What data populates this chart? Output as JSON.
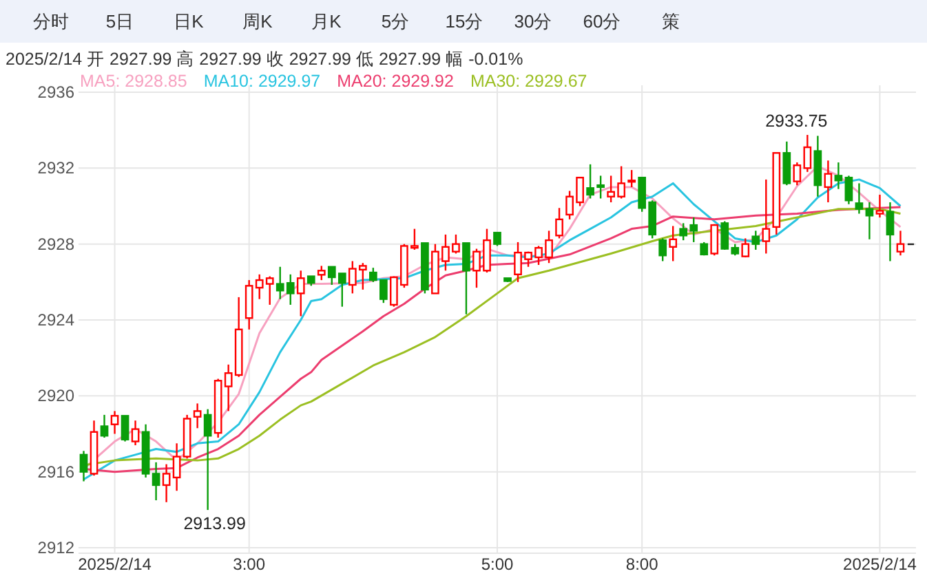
{
  "chart_data": {
    "type": "candlestick",
    "subtitle": "2025/2/14 开 2927.99 高 2927.99 收 2927.99 低 2927.99 幅 -0.01%",
    "categories": [
      null,
      null,
      null,
      "2025/2/14",
      null,
      null,
      null,
      null,
      null,
      null,
      null,
      null,
      null,
      null,
      null,
      null,
      "3:00",
      null,
      null,
      null,
      null,
      null,
      null,
      null,
      null,
      null,
      null,
      null,
      null,
      null,
      null,
      null,
      null,
      null,
      null,
      null,
      null,
      null,
      null,
      null,
      "5:00",
      null,
      null,
      null,
      null,
      null,
      null,
      null,
      null,
      null,
      null,
      null,
      null,
      null,
      "8:00",
      null,
      null,
      null,
      null,
      null,
      null,
      null,
      null,
      null,
      null,
      null,
      null,
      null,
      null,
      null,
      null,
      null,
      null,
      null,
      null,
      null,
      null,
      "2025/2/14",
      null,
      null,
      null
    ],
    "ohlc": [
      [
        2916.9,
        2917.1,
        2915.5,
        2916.0
      ],
      [
        2915.9,
        2918.7,
        2915.8,
        2918.1
      ],
      [
        2918.4,
        2919.0,
        2917.8,
        2917.9
      ],
      [
        2918.5,
        2919.2,
        2918.0,
        2918.95
      ],
      [
        2918.95,
        2918.95,
        2917.6,
        2917.7
      ],
      [
        2917.6,
        2918.7,
        2917.4,
        2918.25
      ],
      [
        2918.1,
        2918.5,
        2915.7,
        2915.9
      ],
      [
        2915.9,
        2916.5,
        2914.5,
        2915.3
      ],
      [
        2915.3,
        2916.4,
        2914.4,
        2915.9
      ],
      [
        2915.7,
        2917.5,
        2915.0,
        2916.8
      ],
      [
        2916.8,
        2919.0,
        2916.7,
        2918.8
      ],
      [
        2918.9,
        2919.6,
        2918.3,
        2919.2
      ],
      [
        2919.0,
        2919.3,
        2913.99,
        2917.9
      ],
      [
        2918.05,
        2920.9,
        2917.8,
        2920.8
      ],
      [
        2920.5,
        2921.65,
        2919.2,
        2921.2
      ],
      [
        2921.1,
        2925.2,
        2921.0,
        2923.5
      ],
      [
        2924.1,
        2926.1,
        2923.5,
        2925.8
      ],
      [
        2925.7,
        2926.4,
        2925.1,
        2926.1
      ],
      [
        2925.9,
        2926.3,
        2924.8,
        2926.2
      ],
      [
        2925.9,
        2926.8,
        2925.1,
        2925.55
      ],
      [
        2925.95,
        2926.4,
        2924.8,
        2925.4
      ],
      [
        2925.4,
        2926.6,
        2924.2,
        2926.2
      ],
      [
        2926.3,
        2926.3,
        2925.8,
        2925.95
      ],
      [
        2926.38,
        2926.85,
        2926.1,
        2926.6
      ],
      [
        2926.8,
        2926.8,
        2925.85,
        2926.25
      ],
      [
        2926.45,
        2926.45,
        2924.7,
        2925.95
      ],
      [
        2925.85,
        2927.1,
        2925.4,
        2926.7
      ],
      [
        2926.65,
        2927.0,
        2925.6,
        2926.85
      ],
      [
        2926.5,
        2926.75,
        2926.0,
        2926.1
      ],
      [
        2926.1,
        2926.1,
        2924.9,
        2925.1
      ],
      [
        2924.8,
        2926.3,
        2924.7,
        2926.25
      ],
      [
        2925.85,
        2928.0,
        2925.7,
        2927.9
      ],
      [
        2927.8,
        2928.8,
        2927.7,
        2927.9
      ],
      [
        2928.05,
        2928.05,
        2925.4,
        2925.6
      ],
      [
        2925.4,
        2928.0,
        2925.4,
        2927.6
      ],
      [
        2927.1,
        2928.5,
        2926.6,
        2927.85
      ],
      [
        2927.6,
        2928.5,
        2927.5,
        2928.0
      ],
      [
        2928.05,
        2928.05,
        2924.3,
        2926.6
      ],
      [
        2926.6,
        2927.75,
        2925.7,
        2927.6
      ],
      [
        2926.6,
        2928.8,
        2926.5,
        2928.2
      ],
      [
        2928.6,
        2928.6,
        2927.9,
        2928.0
      ],
      [
        2926.2,
        2926.2,
        2926.0,
        2926.05
      ],
      [
        2926.4,
        2928.1,
        2926.0,
        2927.55
      ],
      [
        2927.2,
        2927.6,
        2926.8,
        2927.55
      ],
      [
        2927.3,
        2927.9,
        2926.9,
        2927.8
      ],
      [
        2927.3,
        2928.7,
        2927.0,
        2928.2
      ],
      [
        2928.45,
        2929.9,
        2928.3,
        2929.3
      ],
      [
        2929.55,
        2930.8,
        2929.3,
        2930.5
      ],
      [
        2930.2,
        2931.5,
        2930.0,
        2931.5
      ],
      [
        2930.95,
        2932.2,
        2930.4,
        2930.6
      ],
      [
        2931.1,
        2931.6,
        2930.4,
        2931.0
      ],
      [
        2930.5,
        2931.6,
        2930.2,
        2930.75
      ],
      [
        2930.5,
        2932.1,
        2930.4,
        2931.2
      ],
      [
        2931.3,
        2931.9,
        2931.0,
        2931.35
      ],
      [
        2931.5,
        2931.5,
        2929.7,
        2929.9
      ],
      [
        2930.2,
        2930.3,
        2928.3,
        2928.5
      ],
      [
        2928.2,
        2928.3,
        2927.1,
        2927.4
      ],
      [
        2927.85,
        2928.95,
        2927.1,
        2928.25
      ],
      [
        2928.8,
        2929.1,
        2928.2,
        2928.45
      ],
      [
        2929.0,
        2929.4,
        2928.1,
        2928.7
      ],
      [
        2928.0,
        2928.1,
        2927.4,
        2927.45
      ],
      [
        2927.5,
        2929.05,
        2927.4,
        2929.0
      ],
      [
        2929.1,
        2929.2,
        2927.7,
        2927.75
      ],
      [
        2927.8,
        2928.0,
        2927.4,
        2927.5
      ],
      [
        2927.35,
        2928.3,
        2927.3,
        2928.0
      ],
      [
        2928.4,
        2928.7,
        2927.7,
        2928.0
      ],
      [
        2928.15,
        2931.4,
        2927.5,
        2928.8
      ],
      [
        2928.9,
        2932.8,
        2928.5,
        2932.8
      ],
      [
        2932.8,
        2933.4,
        2931.1,
        2931.2
      ],
      [
        2931.3,
        2932.3,
        2931.1,
        2932.15
      ],
      [
        2932.0,
        2933.75,
        2931.8,
        2933.1
      ],
      [
        2932.9,
        2933.7,
        2930.5,
        2931.1
      ],
      [
        2931.0,
        2932.4,
        2930.2,
        2931.7
      ],
      [
        2931.6,
        2932.3,
        2930.9,
        2931.35
      ],
      [
        2931.5,
        2931.6,
        2930.1,
        2930.3
      ],
      [
        2930.15,
        2931.2,
        2929.6,
        2929.85
      ],
      [
        2929.85,
        2930.2,
        2928.25,
        2929.5
      ],
      [
        2929.6,
        2930.6,
        2929.4,
        2929.75
      ],
      [
        2929.7,
        2930.2,
        2927.1,
        2928.5
      ],
      [
        2927.6,
        2928.7,
        2927.4,
        2928.0
      ],
      [
        2927.99,
        2927.99,
        2927.99,
        2927.99
      ]
    ],
    "series": [
      {
        "name": "MA5: 2928.85",
        "type": "line",
        "color": "#f7a1c0",
        "values": [
          2916.15,
          null,
          null,
          2917.6,
          null,
          2918.25,
          null,
          2917.6,
          null,
          2916.6,
          null,
          2917.5,
          null,
          2918.6,
          null,
          2920.1,
          null,
          2923.3,
          null,
          2925.15,
          null,
          2925.9,
          null,
          2925.9,
          null,
          null,
          null,
          2925.95,
          null,
          2926.2,
          null,
          2926.3,
          null,
          2926.9,
          null,
          2927.3,
          null,
          2927.2,
          null,
          2927.75,
          null,
          2927.4,
          null,
          2927.4,
          null,
          2927.3,
          null,
          2928.8,
          null,
          2930.6,
          null,
          2931.0,
          null,
          2931.0,
          null,
          2930.4,
          null,
          2929.35,
          null,
          2928.5,
          null,
          2928.8,
          null,
          2928.1,
          null,
          2928.25,
          null,
          2929.4,
          null,
          2931.05,
          null,
          2932.1,
          null,
          2931.6,
          null,
          2930.7,
          null,
          2929.75,
          null,
          2928.9,
          null
        ]
      },
      {
        "name": "MA10: 2929.97",
        "type": "line",
        "color": "#29c4e0",
        "values": [
          2915.6,
          null,
          null,
          2916.6,
          null,
          2916.9,
          null,
          2917.2,
          null,
          2917.05,
          null,
          2917.5,
          null,
          2917.6,
          null,
          2918.5,
          null,
          2920.2,
          null,
          2922.3,
          null,
          2924.0,
          2925.0,
          2925.1,
          null,
          2925.85,
          null,
          2926.1,
          null,
          null,
          null,
          2926.2,
          null,
          2926.6,
          null,
          2926.9,
          null,
          2926.95,
          null,
          2927.4,
          null,
          2927.4,
          null,
          2927.3,
          null,
          2927.5,
          null,
          2928.2,
          null,
          2928.8,
          null,
          2929.4,
          null,
          2930.2,
          null,
          2930.5,
          null,
          2931.2,
          null,
          2930.1,
          null,
          2929.2,
          null,
          2928.3,
          null,
          2928.1,
          null,
          2928.45,
          null,
          2929.3,
          null,
          2930.45,
          null,
          2931.2,
          null,
          2931.4,
          null,
          2930.95,
          null,
          2930.0,
          null
        ]
      },
      {
        "name": "MA20: 2929.92",
        "type": "line",
        "color": "#ec3d6e",
        "values": [
          2916.15,
          null,
          null,
          2916.0,
          null,
          null,
          null,
          2916.15,
          null,
          2916.2,
          null,
          2916.75,
          null,
          2917.2,
          null,
          2917.9,
          null,
          2919.0,
          null,
          2919.95,
          null,
          2920.9,
          2921.25,
          2921.9,
          null,
          null,
          null,
          2923.4,
          null,
          2924.2,
          null,
          2924.85,
          null,
          2925.65,
          null,
          2926.35,
          null,
          2926.6,
          null,
          2926.9,
          null,
          2926.95,
          null,
          2927.0,
          null,
          null,
          null,
          2927.45,
          null,
          null,
          null,
          2928.3,
          null,
          2928.8,
          null,
          2928.95,
          null,
          2929.45,
          null,
          null,
          null,
          2929.3,
          null,
          null,
          null,
          2929.5,
          null,
          null,
          null,
          2929.6,
          null,
          null,
          null,
          2929.8,
          null,
          null,
          null,
          2929.9,
          null,
          2929.95,
          null
        ]
      },
      {
        "name": "MA30: 2929.67",
        "type": "line",
        "color": "#9bbf22",
        "values": [
          2916.35,
          null,
          null,
          2916.6,
          null,
          null,
          null,
          2916.7,
          null,
          null,
          null,
          2916.6,
          null,
          2916.7,
          null,
          2917.2,
          null,
          2917.9,
          null,
          2918.75,
          null,
          2919.5,
          2919.7,
          null,
          null,
          null,
          null,
          null,
          2921.6,
          null,
          null,
          2922.3,
          null,
          null,
          2923.1,
          null,
          null,
          2924.2,
          null,
          null,
          2925.4,
          null,
          2926.2,
          null,
          null,
          2926.6,
          null,
          2926.9,
          null,
          null,
          null,
          2927.5,
          null,
          null,
          null,
          2928.15,
          null,
          2928.45,
          null,
          null,
          null,
          2928.7,
          null,
          null,
          null,
          2928.95,
          null,
          null,
          null,
          2929.4,
          null,
          null,
          null,
          2929.85,
          null,
          null,
          null,
          2929.85,
          null,
          2929.6,
          null
        ]
      }
    ],
    "ylim": [
      2912,
      2936
    ],
    "yticks": [
      2912,
      2916,
      2920,
      2924,
      2928,
      2932,
      2936
    ],
    "grid": true,
    "legend": "top left",
    "annotations": [
      "分时",
      "5日",
      "日K",
      "周K",
      "月K",
      "5分",
      "15分",
      "30分",
      "60分",
      "策",
      "2913.99",
      "2933.75"
    ]
  }
}
